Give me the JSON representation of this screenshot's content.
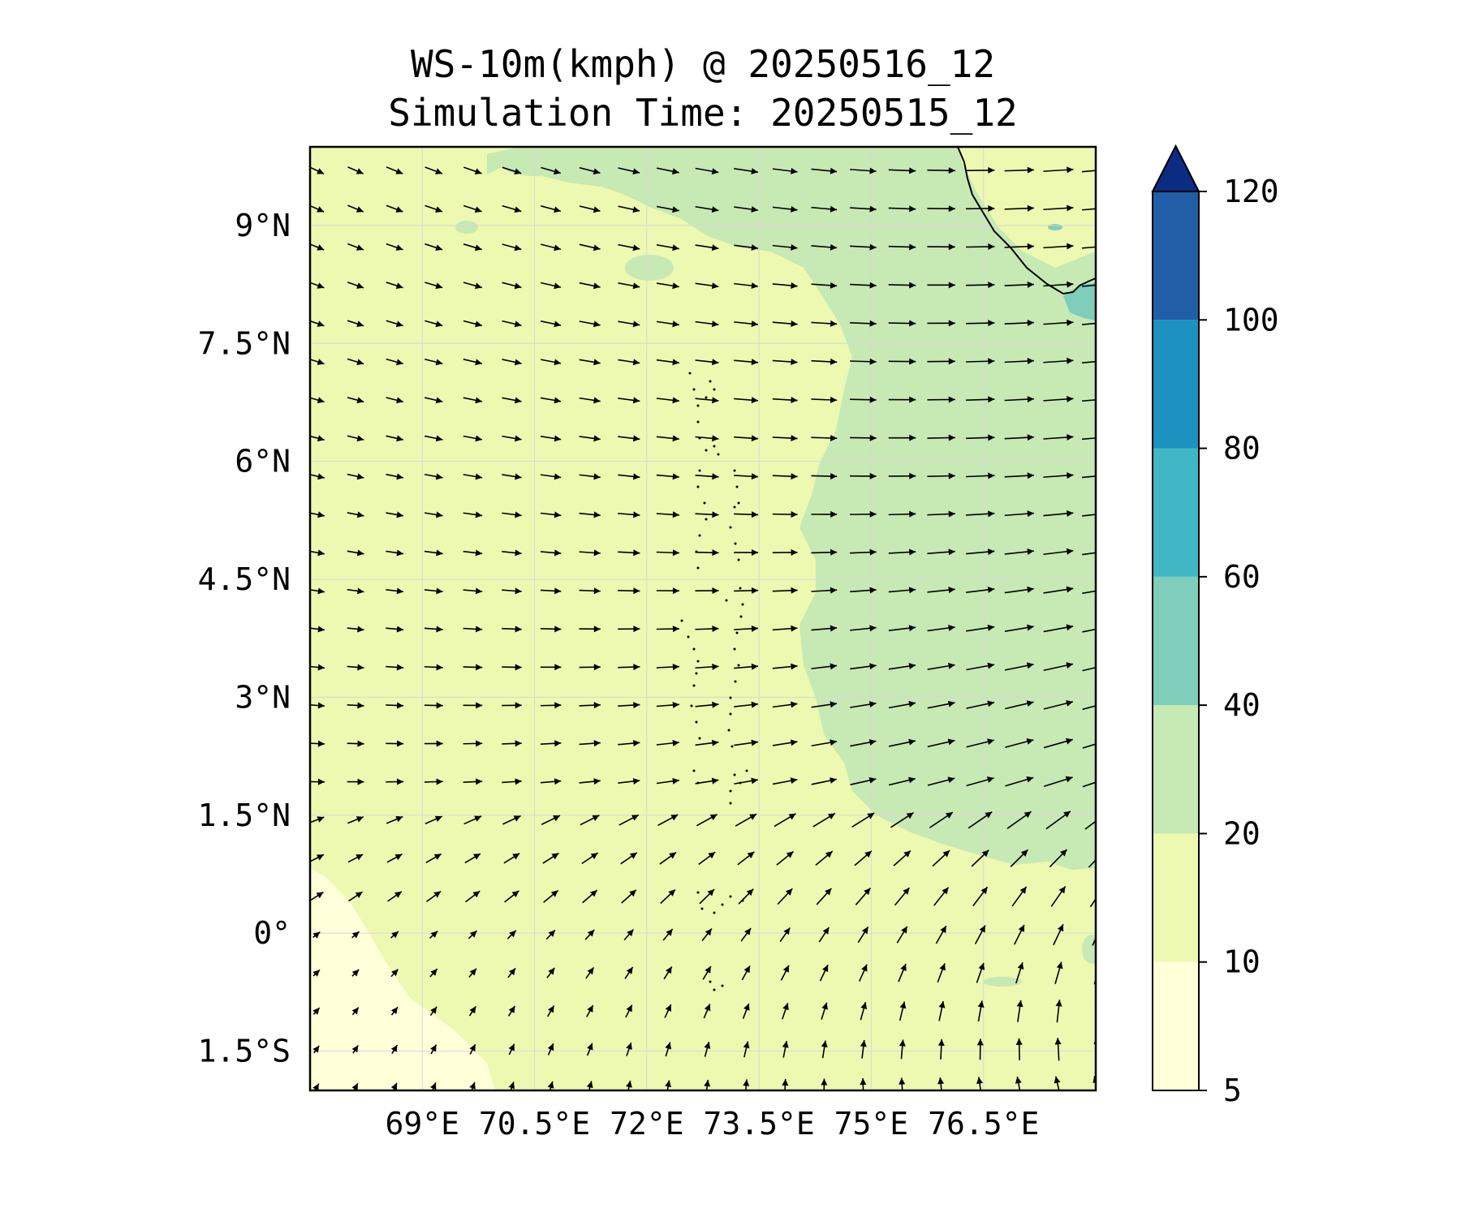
{
  "title": {
    "line1": "WS-10m(kmph) @ 20250516_12",
    "line2": "Simulation Time: 20250515_12"
  },
  "axes": {
    "lon_ticks": [
      "69°E",
      "70.5°E",
      "72°E",
      "73.5°E",
      "75°E",
      "76.5°E"
    ],
    "lat_ticks": [
      "9°N",
      "7.5°N",
      "6°N",
      "4.5°N",
      "3°N",
      "1.5°N",
      "0°",
      "1.5°S"
    ],
    "lon_range": [
      67.5,
      78.0
    ],
    "lat_range": [
      -2.0,
      10.0
    ]
  },
  "colorbar": {
    "levels": [
      "5",
      "10",
      "20",
      "40",
      "60",
      "80",
      "100",
      "120"
    ],
    "colors": [
      "#ffffd9",
      "#edf8b1",
      "#c7e9b4",
      "#7fcdbb",
      "#41b6c4",
      "#1d91c0",
      "#225ea8",
      "#0c2c84"
    ],
    "extend": "max"
  },
  "map_colors": {
    "band_5_10": "#ffffd9",
    "band_10_20": "#edf8b1",
    "band_20_40": "#c7e9b4",
    "band_40_60": "#7fcdbb",
    "arrows": "#000000",
    "coastline": "#000000",
    "grid": "#d8d8d8"
  }
}
